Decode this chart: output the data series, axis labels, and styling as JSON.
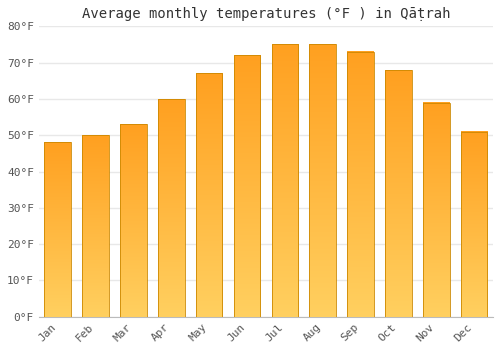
{
  "title": "Average monthly temperatures (°F ) in Qāṭrah",
  "months": [
    "Jan",
    "Feb",
    "Mar",
    "Apr",
    "May",
    "Jun",
    "Jul",
    "Aug",
    "Sep",
    "Oct",
    "Nov",
    "Dec"
  ],
  "values": [
    48,
    50,
    53,
    60,
    67,
    72,
    75,
    75,
    73,
    68,
    59,
    51
  ],
  "bar_color_bottom": "#FFD060",
  "bar_color_top": "#FFA020",
  "bar_edge_color": "#CC8800",
  "background_color": "#FFFFFF",
  "plot_bg_color": "#FFFFFF",
  "grid_color": "#E8E8E8",
  "tick_color": "#555555",
  "title_color": "#333333",
  "ylim": [
    0,
    80
  ],
  "ytick_step": 10,
  "title_fontsize": 10,
  "tick_fontsize": 8,
  "bar_width": 0.7,
  "figsize": [
    5.0,
    3.5
  ],
  "dpi": 100
}
